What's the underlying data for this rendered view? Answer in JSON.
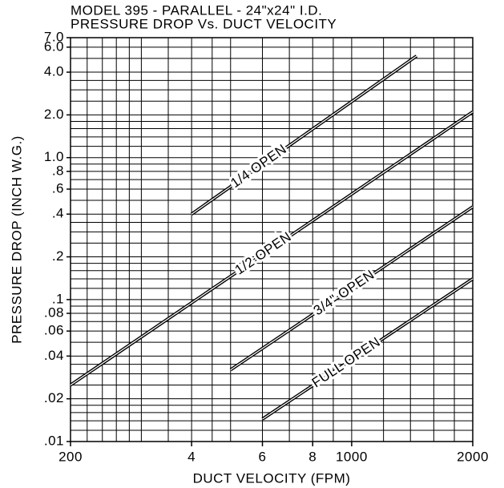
{
  "chart_data": {
    "type": "line",
    "title": "MODEL 395 - PARALLEL - 24\"x24\" I.D.",
    "subtitle": "PRESSURE DROP Vs. DUCT VELOCITY",
    "x_label": "DUCT VELOCITY (FPM)",
    "y_label": "PRESSURE DROP (INCH W.G.)",
    "x_log": true,
    "y_log": true,
    "grid": true,
    "xlim": [
      200,
      2000
    ],
    "ylim": [
      0.01,
      7
    ],
    "xticks": [
      200,
      {
        "value": 400,
        "label": "4"
      },
      {
        "value": 600,
        "label": "6"
      },
      {
        "value": 800,
        "label": "8"
      },
      1000,
      2000
    ],
    "yticks": [
      {
        "value": 7,
        "label": "7.0"
      },
      {
        "value": 6,
        "label": "6.0"
      },
      {
        "value": 4,
        "label": "4.0"
      },
      {
        "value": 2,
        "label": "2.0"
      },
      {
        "value": 1,
        "label": "1.0"
      },
      {
        "value": 0.8,
        "label": ".8"
      },
      {
        "value": 0.6,
        "label": ".6"
      },
      {
        "value": 0.4,
        "label": ".4"
      },
      {
        "value": 0.2,
        "label": ".2"
      },
      {
        "value": 0.1,
        "label": ".1"
      },
      {
        "value": 0.08,
        "label": ".08"
      },
      {
        "value": 0.06,
        "label": ".06"
      },
      {
        "value": 0.04,
        "label": ".04"
      },
      {
        "value": 0.02,
        "label": ".02"
      },
      {
        "value": 0.01,
        "label": ".01"
      }
    ],
    "x_minor_ticks": [
      220,
      240,
      260,
      280,
      300,
      350,
      450,
      500,
      700,
      900,
      1200,
      1400,
      1600,
      1800
    ],
    "y_minor_ticks": [
      0.012,
      0.014,
      0.016,
      0.018,
      0.025,
      0.03,
      0.035,
      0.05,
      0.07,
      0.09,
      0.12,
      0.14,
      0.16,
      0.18,
      0.25,
      0.3,
      0.35,
      0.5,
      0.7,
      0.9,
      1.2,
      1.4,
      1.6,
      1.8,
      2.5,
      3,
      3.5,
      5
    ],
    "series": [
      {
        "name": "1/4 OPEN",
        "color": "#000000",
        "x": [
          400,
          1450
        ],
        "values": [
          0.4,
          5.2
        ]
      },
      {
        "name": "1/2 OPEN",
        "color": "#000000",
        "x": [
          200,
          2000
        ],
        "values": [
          0.025,
          2.1
        ]
      },
      {
        "name": "3/4\" OPEN",
        "color": "#000000",
        "x": [
          500,
          2000
        ],
        "values": [
          0.032,
          0.45
        ]
      },
      {
        "name": "FULL OPEN",
        "color": "#000000",
        "x": [
          600,
          2000
        ],
        "values": [
          0.0144,
          0.14
        ]
      }
    ]
  }
}
